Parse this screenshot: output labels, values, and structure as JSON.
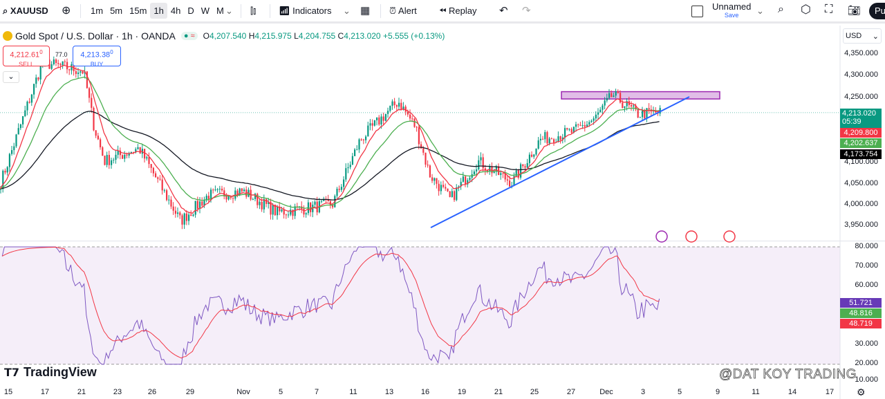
{
  "toolbar": {
    "symbol": "XAUUSD",
    "intervals": [
      "1m",
      "5m",
      "15m",
      "1h",
      "4h",
      "D",
      "W",
      "M"
    ],
    "active_interval": "1h",
    "indicators": "Indicators",
    "alert": "Alert",
    "replay": "Replay",
    "layout_name": "Unnamed",
    "save": "Save",
    "publish": "Pu"
  },
  "legend": {
    "title": "Gold Spot / U.S. Dollar · 1h · OANDA",
    "o_label": "O",
    "o": "4,207.540",
    "h_label": "H",
    "h": "4,215.975",
    "l_label": "L",
    "l": "4,204.755",
    "c_label": "C",
    "c": "4,213.020",
    "change": "+5.555 (+0.13%)"
  },
  "trade": {
    "sell_price": "4,212.61",
    "sell_sup": "0",
    "sell": "SELL",
    "spread": "77.0",
    "buy_price": "4,213.38",
    "buy_sup": "0",
    "buy": "BUY"
  },
  "price_axis": {
    "currency": "USD",
    "ticks": [
      "4,350.000",
      "4,300.000",
      "4,250.000",
      "4,100.000",
      "4,050.000",
      "4,000.000",
      "3,950.000"
    ]
  },
  "price_tags": {
    "last": "4,213.020",
    "countdown": "05:39",
    "red": "4,209.800",
    "green": "4,202.637",
    "black": "4,173.754"
  },
  "rsi_axis": {
    "ticks": [
      "80.000",
      "70.000",
      "60.000",
      "30.000",
      "20.000",
      "10.000"
    ],
    "tags": [
      "51.721",
      "48.816",
      "48.719"
    ]
  },
  "time_axis": [
    "15",
    "17",
    "21",
    "23",
    "26",
    "29",
    "Nov",
    "5",
    "7",
    "11",
    "13",
    "16",
    "19",
    "21",
    "25",
    "27",
    "Dec",
    "3",
    "5",
    "9",
    "11",
    "14",
    "17"
  ],
  "brand": "TradingView",
  "watermark": "@DAT KOY TRADING",
  "colors": {
    "up": "#089981",
    "down": "#f23645",
    "ema_fast": "#f23645",
    "ema_mid": "#4caf50",
    "ema_slow": "#131722",
    "trend": "#2962ff",
    "rsi": "#7e57c2",
    "zone": "#9c27b0"
  },
  "chart_data": {
    "type": "candlestick",
    "symbol": "XAUUSD",
    "timeframe": "1h",
    "price_path": [
      [
        0,
        4050
      ],
      [
        60,
        4330
      ],
      [
        120,
        4310
      ],
      [
        135,
        4180
      ],
      [
        150,
        4100
      ],
      [
        200,
        4130
      ],
      [
        260,
        3960
      ],
      [
        300,
        4020
      ],
      [
        350,
        4030
      ],
      [
        400,
        3980
      ],
      [
        480,
        4000
      ],
      [
        520,
        4150
      ],
      [
        575,
        4240
      ],
      [
        600,
        4180
      ],
      [
        620,
        4070
      ],
      [
        650,
        4010
      ],
      [
        690,
        4100
      ],
      [
        740,
        4050
      ],
      [
        780,
        4150
      ],
      [
        830,
        4170
      ],
      [
        860,
        4200
      ],
      [
        885,
        4255
      ],
      [
        920,
        4210
      ],
      [
        955,
        4213
      ]
    ],
    "resistance_zone": [
      4245,
      4262
    ],
    "trendline": [
      [
        3945
      ],
      [
        4213
      ]
    ],
    "ylim": [
      3925,
      4390
    ],
    "rsi_ylim": [
      10,
      83
    ]
  }
}
